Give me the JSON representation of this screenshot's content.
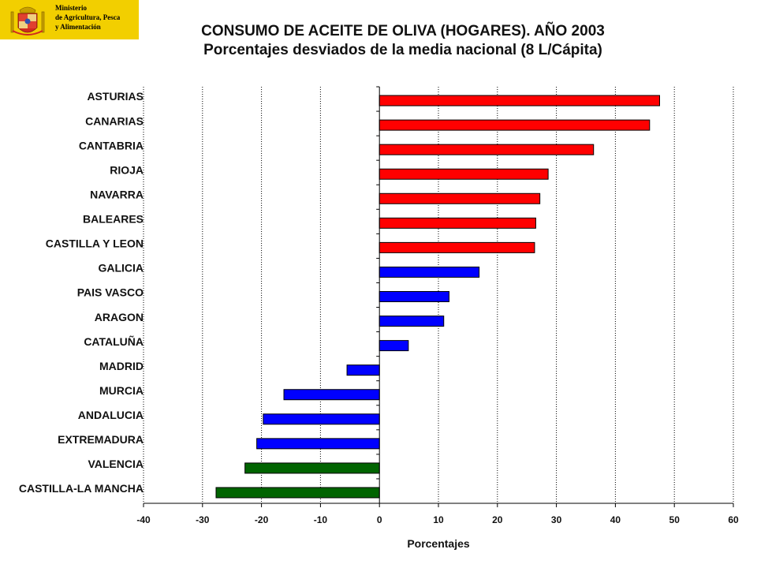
{
  "logo": {
    "line1": "Ministerio",
    "line2": "de Agricultura, Pesca",
    "line3": "y Alimentación",
    "background": "#f2cf00"
  },
  "chart_data": {
    "type": "bar",
    "orientation": "horizontal",
    "title": "CONSUMO DE ACEITE DE OLIVA (HOGARES). AÑO 2003",
    "subtitle": "Porcentajes desviados de la media nacional (8 L/Cápita)",
    "xlabel": "Porcentajes",
    "ylabel": "",
    "xlim": [
      -40,
      60
    ],
    "xticks": [
      "-40",
      "-30",
      "-20",
      "-10",
      "0",
      "10",
      "20",
      "30",
      "40",
      "50",
      "60"
    ],
    "grid": "vertical dotted",
    "categories": [
      "ASTURIAS",
      "CANARIAS",
      "CANTABRIA",
      "RIOJA",
      "NAVARRA",
      "BALEARES",
      "CASTILLA Y LEON",
      "GALICIA",
      "PAIS VASCO",
      "ARAGON",
      "CATALUÑA",
      "MADRID",
      "MURCIA",
      "ANDALUCIA",
      "EXTREMADURA",
      "VALENCIA",
      "CASTILLA-LA MANCHA"
    ],
    "values": [
      47.5,
      45.8,
      36.3,
      28.6,
      27.2,
      26.5,
      26.3,
      16.9,
      11.8,
      10.9,
      4.9,
      -5.5,
      -16.2,
      -19.7,
      -20.8,
      -22.8,
      -27.7
    ],
    "bar_colors": [
      "#ff0000",
      "#ff0000",
      "#ff0000",
      "#ff0000",
      "#ff0000",
      "#ff0000",
      "#ff0000",
      "#0000ff",
      "#0000ff",
      "#0000ff",
      "#0000ff",
      "#0000ff",
      "#0000ff",
      "#0000ff",
      "#0000ff",
      "#006400",
      "#006400"
    ]
  }
}
